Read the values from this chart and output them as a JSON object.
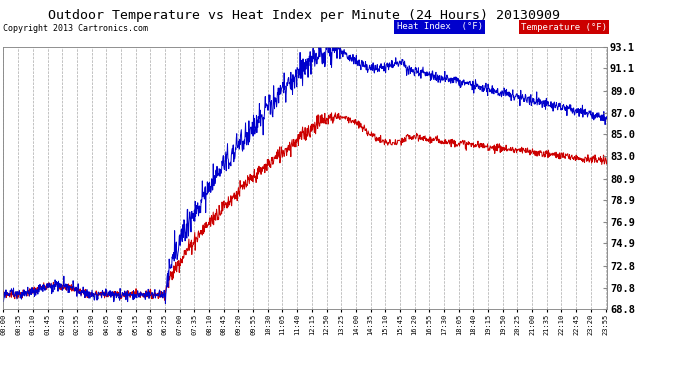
{
  "title": "Outdoor Temperature vs Heat Index per Minute (24 Hours) 20130909",
  "copyright": "Copyright 2013 Cartronics.com",
  "legend_heat_index": "Heat Index  (°F)",
  "legend_temperature": "Temperature (°F)",
  "heat_index_color": "#0000cc",
  "temperature_color": "#cc0000",
  "background_color": "#ffffff",
  "plot_bg_color": "#ffffff",
  "grid_color": "#aaaaaa",
  "yticks": [
    68.8,
    70.8,
    72.8,
    74.9,
    76.9,
    78.9,
    80.9,
    83.0,
    85.0,
    87.0,
    89.0,
    91.1,
    93.1
  ],
  "ymin": 68.8,
  "ymax": 93.1,
  "xtick_interval_minutes": 35,
  "total_minutes": 1440
}
